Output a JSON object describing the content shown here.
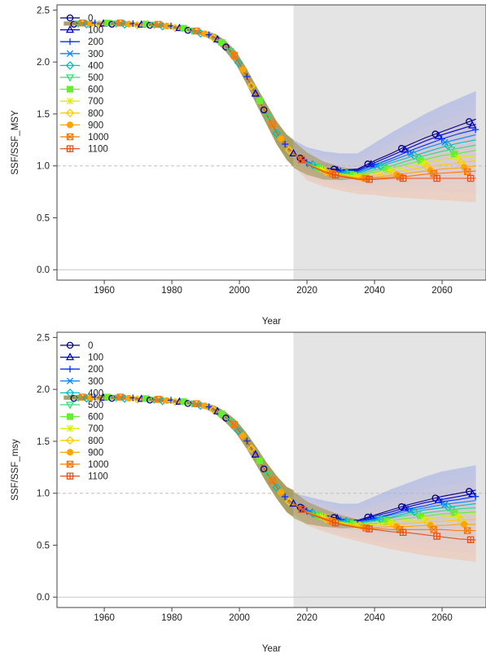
{
  "chart_data": [
    {
      "type": "line",
      "title": "",
      "xlabel": "Year",
      "ylabel": "SSF/SSF_MSY",
      "xlim": [
        1946,
        2073
      ],
      "ylim": [
        -0.1,
        2.55
      ],
      "xticks": [
        1960,
        1980,
        2000,
        2020,
        2040,
        2060
      ],
      "yticks": [
        "0.0",
        "0.5",
        "1.0",
        "1.5",
        "2.0",
        "2.5"
      ],
      "reference_line": 1.0,
      "projection_shading_start": 2016,
      "grid": false,
      "legend_position": "top-left",
      "history": {
        "x": [
          1950,
          1955,
          1960,
          1965,
          1970,
          1975,
          1980,
          1985,
          1990,
          1993,
          1996,
          1999,
          2002,
          2005,
          2008,
          2011,
          2014,
          2016
        ],
        "y": [
          2.37,
          2.37,
          2.37,
          2.37,
          2.36,
          2.36,
          2.34,
          2.31,
          2.27,
          2.23,
          2.15,
          2.04,
          1.87,
          1.68,
          1.5,
          1.32,
          1.18,
          1.12
        ]
      },
      "projection_x": [
        2016,
        2020,
        2025,
        2030,
        2035,
        2040,
        2045,
        2050,
        2055,
        2060,
        2065,
        2070
      ],
      "series": [
        {
          "name": "0",
          "values": [
            1.12,
            1.03,
            0.98,
            0.96,
            0.97,
            1.05,
            1.12,
            1.2,
            1.27,
            1.33,
            1.39,
            1.45
          ]
        },
        {
          "name": "100",
          "values": [
            1.12,
            1.03,
            0.98,
            0.95,
            0.96,
            1.03,
            1.1,
            1.17,
            1.24,
            1.3,
            1.35,
            1.4
          ]
        },
        {
          "name": "200",
          "values": [
            1.12,
            1.03,
            0.97,
            0.95,
            0.95,
            1.01,
            1.07,
            1.14,
            1.2,
            1.26,
            1.31,
            1.35
          ]
        },
        {
          "name": "300",
          "values": [
            1.12,
            1.03,
            0.97,
            0.94,
            0.94,
            0.99,
            1.05,
            1.11,
            1.17,
            1.22,
            1.26,
            1.3
          ]
        },
        {
          "name": "400",
          "values": [
            1.12,
            1.03,
            0.97,
            0.93,
            0.93,
            0.98,
            1.03,
            1.08,
            1.13,
            1.18,
            1.22,
            1.25
          ]
        },
        {
          "name": "500",
          "values": [
            1.12,
            1.03,
            0.96,
            0.93,
            0.92,
            0.96,
            1.0,
            1.05,
            1.1,
            1.14,
            1.17,
            1.2
          ]
        },
        {
          "name": "600",
          "values": [
            1.12,
            1.02,
            0.96,
            0.92,
            0.91,
            0.94,
            0.98,
            1.02,
            1.06,
            1.1,
            1.12,
            1.15
          ]
        },
        {
          "name": "700",
          "values": [
            1.12,
            1.02,
            0.96,
            0.92,
            0.9,
            0.93,
            0.96,
            0.99,
            1.03,
            1.06,
            1.08,
            1.1
          ]
        },
        {
          "name": "800",
          "values": [
            1.12,
            1.02,
            0.95,
            0.91,
            0.89,
            0.91,
            0.93,
            0.96,
            0.99,
            1.01,
            1.03,
            1.05
          ]
        },
        {
          "name": "900",
          "values": [
            1.12,
            1.02,
            0.95,
            0.91,
            0.88,
            0.89,
            0.91,
            0.93,
            0.95,
            0.97,
            0.98,
            1.0
          ]
        },
        {
          "name": "1000",
          "values": [
            1.12,
            1.02,
            0.95,
            0.9,
            0.88,
            0.88,
            0.89,
            0.9,
            0.92,
            0.93,
            0.94,
            0.95
          ]
        },
        {
          "name": "1100",
          "values": [
            1.12,
            1.02,
            0.94,
            0.9,
            0.87,
            0.87,
            0.88,
            0.88,
            0.88,
            0.88,
            0.88,
            0.88
          ]
        }
      ],
      "uncertainty_upper": [
        1.25,
        1.18,
        1.14,
        1.12,
        1.12,
        1.22,
        1.32,
        1.41,
        1.5,
        1.58,
        1.65,
        1.72
      ],
      "uncertainty_lower": [
        1.0,
        0.86,
        0.8,
        0.76,
        0.73,
        0.72,
        0.7,
        0.69,
        0.68,
        0.67,
        0.66,
        0.65
      ]
    },
    {
      "type": "line",
      "title": "",
      "xlabel": "Year",
      "ylabel": "SSF/SSF_msy",
      "xlim": [
        1946,
        2073
      ],
      "ylim": [
        -0.1,
        2.55
      ],
      "xticks": [
        1960,
        1980,
        2000,
        2020,
        2040,
        2060
      ],
      "yticks": [
        "0.0",
        "0.5",
        "1.0",
        "1.5",
        "2.0",
        "2.5"
      ],
      "reference_line": 1.0,
      "projection_shading_start": 2016,
      "grid": false,
      "legend_position": "top-left",
      "history": {
        "x": [
          1950,
          1955,
          1960,
          1965,
          1970,
          1975,
          1980,
          1985,
          1990,
          1993,
          1996,
          1999,
          2002,
          2005,
          2008,
          2011,
          2014,
          2016
        ],
        "y": [
          1.92,
          1.92,
          1.92,
          1.92,
          1.91,
          1.9,
          1.89,
          1.87,
          1.84,
          1.8,
          1.73,
          1.64,
          1.51,
          1.36,
          1.2,
          1.06,
          0.94,
          0.9
        ]
      },
      "projection_x": [
        2016,
        2020,
        2025,
        2030,
        2035,
        2040,
        2045,
        2050,
        2055,
        2060,
        2065,
        2070
      ],
      "series": [
        {
          "name": "0",
          "values": [
            0.9,
            0.83,
            0.79,
            0.75,
            0.74,
            0.79,
            0.84,
            0.89,
            0.93,
            0.97,
            1.0,
            1.03
          ]
        },
        {
          "name": "100",
          "values": [
            0.9,
            0.83,
            0.79,
            0.75,
            0.73,
            0.78,
            0.82,
            0.87,
            0.91,
            0.94,
            0.97,
            1.0
          ]
        },
        {
          "name": "200",
          "values": [
            0.9,
            0.83,
            0.78,
            0.74,
            0.73,
            0.76,
            0.8,
            0.85,
            0.88,
            0.92,
            0.94,
            0.97
          ]
        },
        {
          "name": "300",
          "values": [
            0.9,
            0.83,
            0.78,
            0.74,
            0.72,
            0.75,
            0.79,
            0.83,
            0.86,
            0.89,
            0.91,
            0.93
          ]
        },
        {
          "name": "400",
          "values": [
            0.9,
            0.82,
            0.78,
            0.73,
            0.71,
            0.74,
            0.77,
            0.81,
            0.84,
            0.86,
            0.88,
            0.9
          ]
        },
        {
          "name": "500",
          "values": [
            0.9,
            0.82,
            0.77,
            0.73,
            0.71,
            0.73,
            0.76,
            0.79,
            0.81,
            0.83,
            0.85,
            0.86
          ]
        },
        {
          "name": "600",
          "values": [
            0.9,
            0.82,
            0.77,
            0.72,
            0.7,
            0.71,
            0.74,
            0.76,
            0.78,
            0.8,
            0.81,
            0.82
          ]
        },
        {
          "name": "700",
          "values": [
            0.9,
            0.82,
            0.77,
            0.72,
            0.69,
            0.7,
            0.72,
            0.74,
            0.75,
            0.77,
            0.78,
            0.79
          ]
        },
        {
          "name": "800",
          "values": [
            0.9,
            0.82,
            0.76,
            0.71,
            0.69,
            0.69,
            0.7,
            0.71,
            0.72,
            0.73,
            0.74,
            0.75
          ]
        },
        {
          "name": "900",
          "values": [
            0.9,
            0.82,
            0.76,
            0.71,
            0.68,
            0.67,
            0.68,
            0.68,
            0.69,
            0.69,
            0.7,
            0.7
          ]
        },
        {
          "name": "1000",
          "values": [
            0.9,
            0.82,
            0.76,
            0.7,
            0.67,
            0.66,
            0.65,
            0.65,
            0.65,
            0.65,
            0.64,
            0.64
          ]
        },
        {
          "name": "1100",
          "values": [
            0.9,
            0.81,
            0.75,
            0.7,
            0.67,
            0.65,
            0.63,
            0.62,
            0.6,
            0.58,
            0.56,
            0.55
          ]
        }
      ],
      "uncertainty_upper": [
        1.0,
        0.97,
        0.93,
        0.9,
        0.9,
        0.97,
        1.04,
        1.1,
        1.16,
        1.21,
        1.24,
        1.27
      ],
      "uncertainty_lower": [
        0.8,
        0.69,
        0.63,
        0.58,
        0.54,
        0.5,
        0.46,
        0.43,
        0.4,
        0.38,
        0.36,
        0.34
      ]
    }
  ],
  "colors": {
    "series": [
      "#00007F",
      "#0000C8",
      "#0033FF",
      "#0088FF",
      "#00BFBF",
      "#33DD77",
      "#66EE33",
      "#DDEE00",
      "#FFCC00",
      "#FFA500",
      "#FF7700",
      "#E8501A"
    ],
    "projection_shading": "#E4E4E4",
    "reference_line": "#BFBFBF",
    "history_band": "#9A8F48",
    "projection_band_low": "#F4C0A6",
    "projection_band_high": "#9AA8E6"
  },
  "markers": [
    "circle",
    "triangle",
    "plus",
    "x",
    "diamond",
    "triangle-down",
    "square",
    "asterisk",
    "diamond",
    "circle-filled",
    "square-x",
    "square-plus"
  ]
}
